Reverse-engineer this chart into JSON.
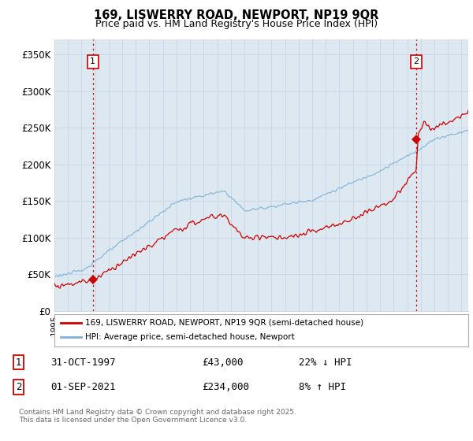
{
  "title1": "169, LISWERRY ROAD, NEWPORT, NP19 9QR",
  "title2": "Price paid vs. HM Land Registry's House Price Index (HPI)",
  "ylabel_ticks": [
    "£0",
    "£50K",
    "£100K",
    "£150K",
    "£200K",
    "£250K",
    "£300K",
    "£350K"
  ],
  "ytick_values": [
    0,
    50000,
    100000,
    150000,
    200000,
    250000,
    300000,
    350000
  ],
  "ylim": [
    0,
    370000
  ],
  "sale1_year": 1997.833,
  "sale1_price": 43000,
  "sale2_year": 2021.667,
  "sale2_price": 234000,
  "line1_color": "#cc0000",
  "line2_color": "#7fb2d9",
  "marker_color": "#cc0000",
  "vline_color": "#cc0000",
  "grid_color": "#c8d8e8",
  "bg_color": "#ffffff",
  "chart_bg_color": "#dde8f0",
  "legend1_label": "169, LISWERRY ROAD, NEWPORT, NP19 9QR (semi-detached house)",
  "legend2_label": "HPI: Average price, semi-detached house, Newport",
  "note1_num": "1",
  "note1_date": "31-OCT-1997",
  "note1_price": "£43,000",
  "note1_hpi": "22% ↓ HPI",
  "note2_num": "2",
  "note2_date": "01-SEP-2021",
  "note2_price": "£234,000",
  "note2_hpi": "8% ↑ HPI",
  "annotation_text": "Contains HM Land Registry data © Crown copyright and database right 2025.\nThis data is licensed under the Open Government Licence v3.0.",
  "xlim_start": 1995,
  "xlim_end": 2025.5
}
